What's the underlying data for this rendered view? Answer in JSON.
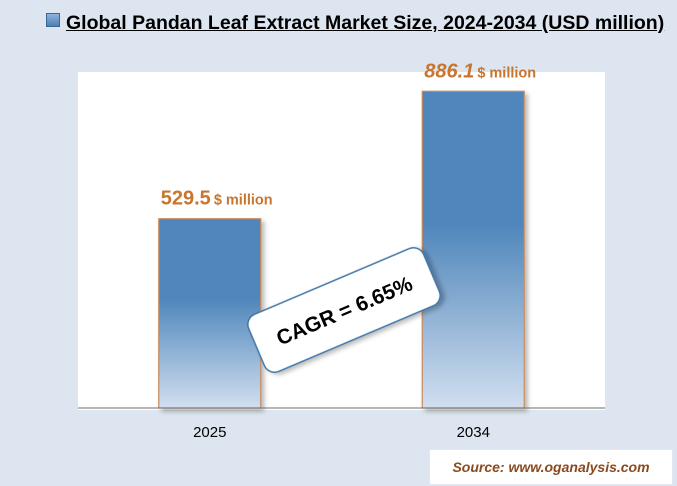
{
  "title": "Global Pandan Leaf Extract Market Size, 2024-2034 (USD million)",
  "source": "Source: www.oganalysis.com",
  "annotation": "CAGR = 6.65%",
  "colors": {
    "label": "#c8752e",
    "bar_top": "#4f86bb",
    "bar_bottom": "#d2dff0",
    "bar_edge": "#c98a5a",
    "axis": "#6d6d6d"
  },
  "chart_data": {
    "type": "bar",
    "title": "Global Pandan Leaf Extract Market Size, 2024-2034 (USD million)",
    "categories": [
      "2025",
      "2034"
    ],
    "series": [
      {
        "values": [
          529.5,
          886.1
        ]
      }
    ],
    "data_labels": [
      {
        "value": "529.5",
        "unit": "$ million"
      },
      {
        "value": "886.1",
        "unit": "$ million"
      }
    ],
    "ylim": [
      0,
      940
    ],
    "grid": false,
    "legend": "none"
  }
}
